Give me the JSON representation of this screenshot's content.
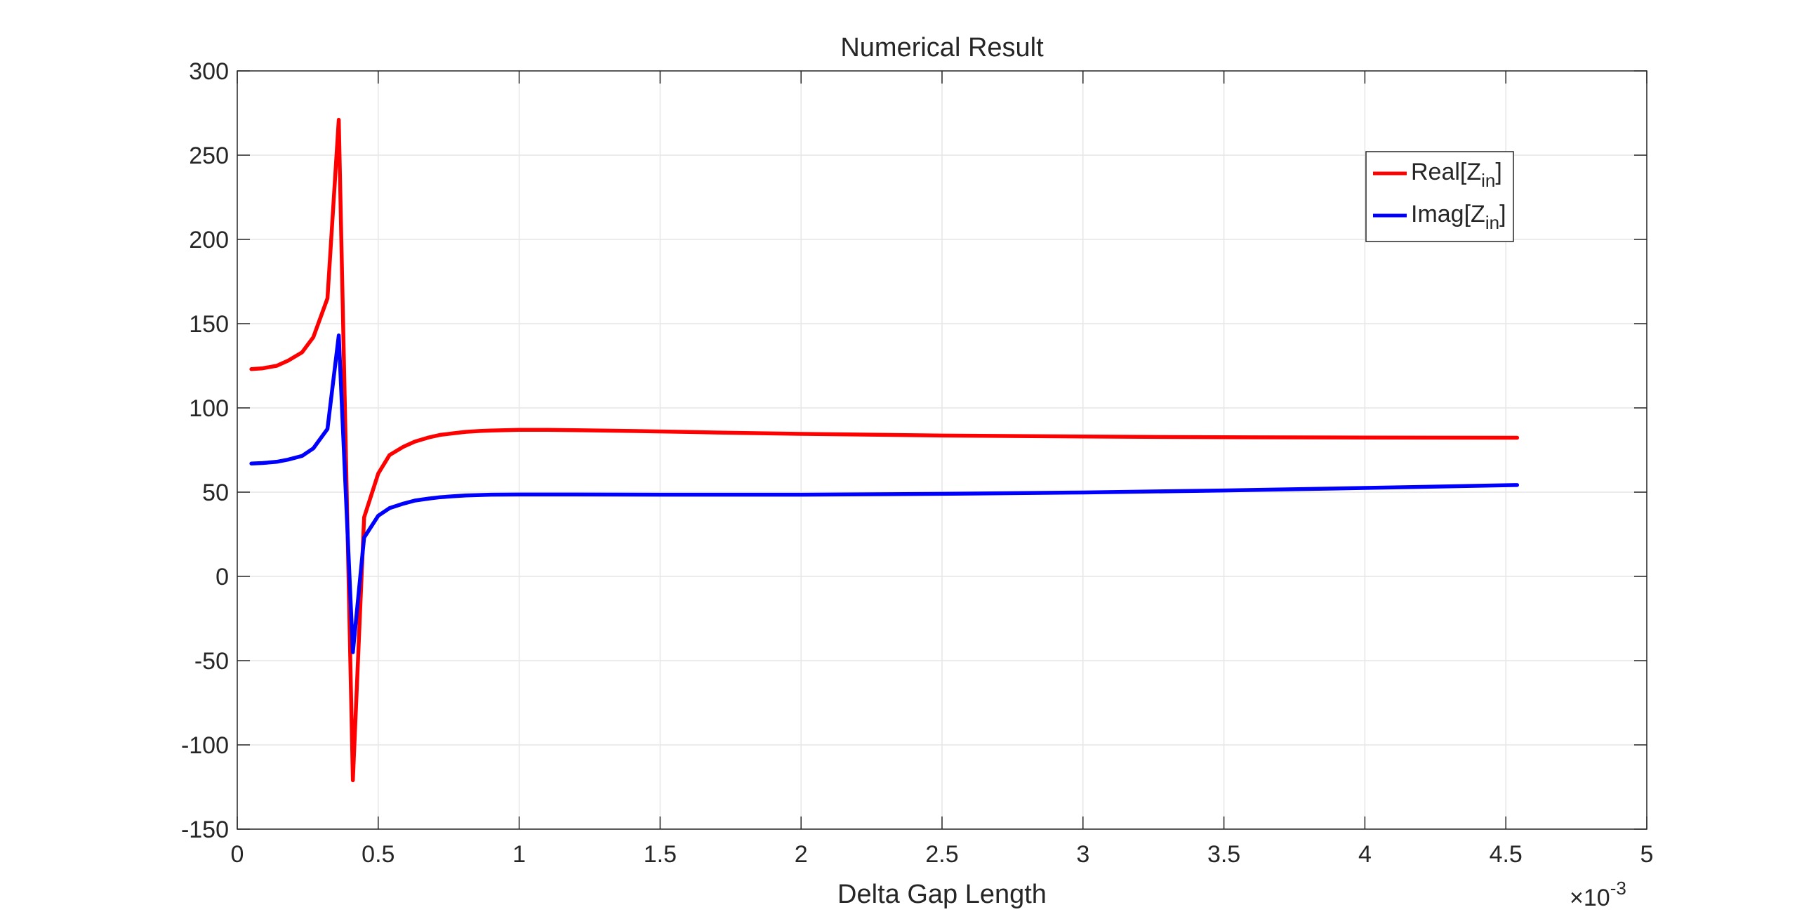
{
  "chart_data": {
    "type": "line",
    "title": "Numerical Result",
    "xlabel": "Delta Gap Length",
    "ylabel": "",
    "x_exponent_label": "×10",
    "x_exponent": "-3",
    "xlim": [
      0,
      5
    ],
    "ylim": [
      -150,
      300
    ],
    "xticks": [
      0,
      0.5,
      1,
      1.5,
      2,
      2.5,
      3,
      3.5,
      4,
      4.5,
      5
    ],
    "xtick_labels": [
      "0",
      "0.5",
      "1",
      "1.5",
      "2",
      "2.5",
      "3",
      "3.5",
      "4",
      "4.5",
      "5"
    ],
    "yticks": [
      -150,
      -100,
      -50,
      0,
      50,
      100,
      150,
      200,
      250,
      300
    ],
    "ytick_labels": [
      "-150",
      "-100",
      "-50",
      "0",
      "50",
      "100",
      "150",
      "200",
      "250",
      "300"
    ],
    "grid": true,
    "legend_position": "top-right",
    "series": [
      {
        "name": "Real[Z_in]",
        "legend_main": "Real[Z",
        "legend_sub": "in",
        "legend_close": "]",
        "color": "#ff0000",
        "x": [
          0.05,
          0.09,
          0.14,
          0.18,
          0.23,
          0.27,
          0.32,
          0.36,
          0.41,
          0.45,
          0.5,
          0.54,
          0.59,
          0.63,
          0.68,
          0.72,
          0.77,
          0.81,
          0.86,
          0.9,
          1.0,
          1.1,
          1.2,
          1.4,
          1.6,
          1.8,
          2.0,
          2.5,
          3.0,
          3.5,
          4.0,
          4.54
        ],
        "y": [
          123,
          123.5,
          125,
          128,
          133,
          142,
          165,
          271,
          -121,
          35,
          61,
          72,
          77,
          80,
          82.5,
          84,
          85,
          85.8,
          86.3,
          86.6,
          87,
          87,
          86.8,
          86.3,
          85.7,
          85.1,
          84.6,
          83.6,
          83,
          82.6,
          82.4,
          82.3
        ]
      },
      {
        "name": "Imag[Z_in]",
        "legend_main": "Imag[Z",
        "legend_sub": "in",
        "legend_close": "]",
        "color": "#0000ff",
        "x": [
          0.05,
          0.09,
          0.14,
          0.18,
          0.23,
          0.27,
          0.32,
          0.36,
          0.41,
          0.45,
          0.5,
          0.54,
          0.59,
          0.63,
          0.68,
          0.72,
          0.77,
          0.81,
          0.86,
          0.9,
          1.0,
          1.2,
          1.5,
          2.0,
          2.5,
          3.0,
          3.5,
          4.0,
          4.54
        ],
        "y": [
          67,
          67.3,
          68,
          69.3,
          71.5,
          76,
          87.5,
          143,
          -45,
          23,
          36,
          40.5,
          43.2,
          45,
          46.2,
          47,
          47.6,
          48,
          48.3,
          48.5,
          48.6,
          48.6,
          48.5,
          48.5,
          49,
          49.8,
          51,
          52.5,
          54.2
        ]
      }
    ]
  }
}
